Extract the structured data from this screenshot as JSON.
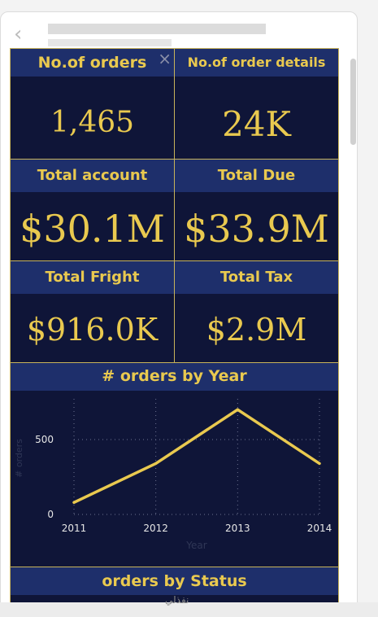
{
  "kpis": [
    {
      "title": "No.of orders",
      "value": "1,465"
    },
    {
      "title": "No.of order details",
      "value": "24K"
    },
    {
      "title": "Total account",
      "value": "$30.1M"
    },
    {
      "title": "Total Due",
      "value": "$33.9M"
    },
    {
      "title": "Total Fright",
      "value": "$916.0K"
    },
    {
      "title": "Total Tax",
      "value": "$2.9M"
    }
  ],
  "close_glyph": "×",
  "back_glyph": "‹",
  "chart_section_title": "# orders by Year",
  "status_section_title": "orders by Status",
  "watermark": "نفذلي",
  "colors": {
    "panel": "#0f1538",
    "header": "#1e2f6b",
    "accent": "#e9c94f",
    "border": "#c8b35a"
  },
  "chart_data": {
    "type": "line",
    "title": "# orders by Year",
    "xlabel": "Year",
    "ylabel": "# orders",
    "x": [
      "2011",
      "2012",
      "2013",
      "2014"
    ],
    "values": [
      80,
      340,
      700,
      340
    ],
    "ylim": [
      0,
      750
    ],
    "yticks": [
      "0",
      "500"
    ],
    "grid": true
  }
}
